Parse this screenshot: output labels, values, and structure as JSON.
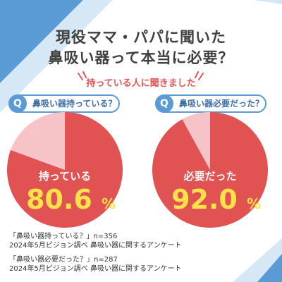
{
  "header": {
    "title_line1": "現役ママ・パパに聞いた",
    "title_line2": "鼻吸い器って本当に必要？",
    "subtitle": "持っている人に聞きました"
  },
  "questions": [
    {
      "badge": "Q",
      "text": "鼻吸い器持っている？"
    },
    {
      "badge": "Q",
      "text": "鼻吸い器必要だった？"
    }
  ],
  "chart_data": [
    {
      "type": "pie",
      "title": "鼻吸い器持っている？",
      "label": "持っている",
      "values": [
        80.6,
        19.4
      ],
      "display_number": "80.6",
      "unit": "%",
      "colors": [
        "#e15252",
        "#f6c4c6"
      ]
    },
    {
      "type": "pie",
      "title": "鼻吸い器必要だった？",
      "label": "必要だった",
      "values": [
        92.0,
        8.0
      ],
      "display_number": "92.0",
      "unit": "%",
      "colors": [
        "#e15252",
        "#f6c4c6"
      ]
    }
  ],
  "footnotes": [
    "「鼻吸い器持っている？」n=356",
    "2024年5月ピジョン調べ 鼻吸い器に関するアンケート",
    "「鼻吸い器必要だった？」n=287",
    "2024年5月ピジョン調べ 鼻吸い器に関するアンケート"
  ],
  "colors": {
    "accent_blue": "#5b9bd5",
    "light_blue": "#a9cdea",
    "pie_main": "#e15252",
    "pie_rest": "#f6c4c6",
    "number_yellow": "#ffe24a"
  }
}
